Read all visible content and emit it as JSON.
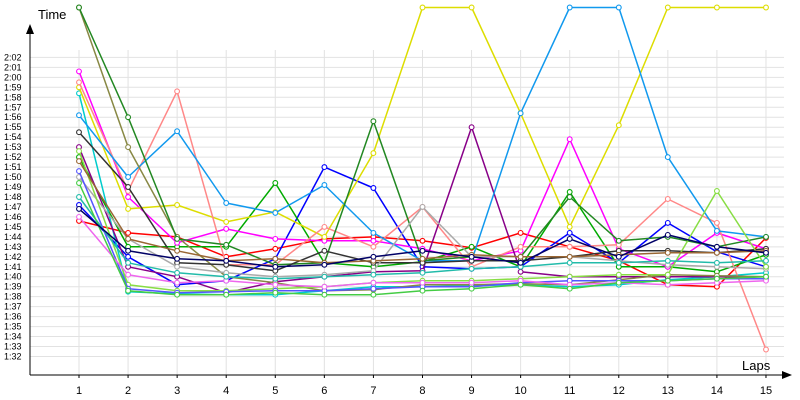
{
  "chart_data": {
    "type": "line",
    "title": "",
    "xlabel": "Laps",
    "ylabel": "Time",
    "x": [
      1,
      2,
      3,
      4,
      5,
      6,
      7,
      8,
      9,
      10,
      11,
      12,
      13,
      14,
      15
    ],
    "x_tick_labels": [
      "1",
      "2",
      "3",
      "4",
      "5",
      "6",
      "7",
      "8",
      "9",
      "10",
      "11",
      "12",
      "13",
      "14",
      "15"
    ],
    "y_tick_values": [
      92,
      93,
      94,
      95,
      96,
      97,
      98,
      99,
      100,
      101,
      102,
      103,
      104,
      105,
      106,
      107,
      108,
      109,
      110,
      111,
      112,
      113,
      114,
      115,
      116,
      117,
      118,
      119,
      120,
      121,
      122
    ],
    "y_tick_labels": [
      "1:32",
      "1:33",
      "1:34",
      "1:35",
      "1:36",
      "1:37",
      "1:38",
      "1:39",
      "1:40",
      "1:41",
      "1:42",
      "1:43",
      "1:44",
      "1:45",
      "1:46",
      "1:47",
      "1:48",
      "1:49",
      "1:50",
      "1:51",
      "1:52",
      "1:53",
      "1:54",
      "1:55",
      "1:56",
      "1:57",
      "1:58",
      "1:59",
      "2:00",
      "2:01",
      "2:02"
    ],
    "ylim": [
      88,
      126
    ],
    "grid": true,
    "legend": "none",
    "series": [
      {
        "color": "#ff0000",
        "values": [
          105.6,
          104.4,
          104.0,
          102.0,
          102.8,
          103.8,
          104.0,
          103.6,
          102.9,
          104.4,
          103.0,
          101.6,
          99.2,
          99.0,
          103.9
        ]
      },
      {
        "color": "#0000ff",
        "values": [
          107.2,
          102.0,
          99.2,
          99.6,
          101.8,
          111.0,
          108.9,
          101.0,
          100.8,
          101.0,
          104.4,
          101.4,
          105.4,
          102.5,
          101.0
        ]
      },
      {
        "color": "#00aa00",
        "values": [
          112.0,
          103.0,
          103.0,
          103.0,
          109.4,
          101.4,
          101.0,
          101.5,
          103.0,
          101.0,
          108.5,
          101.0,
          101.0,
          100.5,
          102.2
        ]
      },
      {
        "color": "#ff00ff",
        "values": [
          120.6,
          108.0,
          103.4,
          104.8,
          103.8,
          103.6,
          103.6,
          102.8,
          101.6,
          102.6,
          113.8,
          102.8,
          101.0,
          104.4,
          102.8
        ]
      },
      {
        "color": "#00cccc",
        "values": [
          118.4,
          98.5,
          98.3,
          98.2,
          98.2,
          98.6,
          99.0,
          99.0,
          99.1,
          99.2,
          99.0,
          99.2,
          99.7,
          100.0,
          100.4
        ]
      },
      {
        "color": "#dddd00",
        "values": [
          119.0,
          106.8,
          107.2,
          105.5,
          106.5,
          104.0,
          112.4,
          127.0,
          127.0,
          116.4,
          105.0,
          115.2,
          127.0,
          127.0,
          127.0
        ]
      },
      {
        "color": "#ff8888",
        "values": [
          119.5,
          108.6,
          118.6,
          101.2,
          101.2,
          105.0,
          103.0,
          107.0,
          101.0,
          103.0,
          103.0,
          103.2,
          107.8,
          105.4,
          92.7
        ]
      },
      {
        "color": "#880088",
        "values": [
          113.0,
          101.0,
          100.0,
          98.4,
          99.5,
          100.0,
          100.5,
          100.6,
          115.0,
          100.5,
          100.0,
          100.0,
          100.0,
          100.0,
          100.0
        ]
      },
      {
        "color": "#1199ee",
        "values": [
          116.2,
          110.0,
          114.6,
          107.4,
          106.4,
          109.2,
          104.4,
          101.6,
          101.6,
          116.4,
          127.0,
          127.0,
          112.0,
          104.6,
          104.0
        ]
      },
      {
        "color": "#888844",
        "values": [
          127.0,
          113.0,
          104.0,
          100.0,
          99.4,
          98.6,
          98.7,
          99.2,
          99.2,
          99.3,
          99.2,
          99.7,
          100.2,
          100.1,
          100.0
        ]
      },
      {
        "color": "#228822",
        "values": [
          127.0,
          116.0,
          103.8,
          103.2,
          101.2,
          101.4,
          115.6,
          101.6,
          102.0,
          102.0,
          108.0,
          103.6,
          104.0,
          103.0,
          104.0
        ]
      },
      {
        "color": "#333333",
        "values": [
          114.5,
          109.0,
          101.4,
          101.2,
          100.6,
          102.6,
          101.4,
          101.4,
          101.6,
          101.6,
          102.0,
          102.6,
          102.6,
          102.4,
          102.8
        ]
      },
      {
        "color": "#aaaaaa",
        "values": [
          110.0,
          103.8,
          101.0,
          100.4,
          100.0,
          100.2,
          100.6,
          107.0,
          102.0,
          102.0,
          102.0,
          101.6,
          101.2,
          101.0,
          100.8
        ]
      },
      {
        "color": "#88dd44",
        "values": [
          112.6,
          99.2,
          98.6,
          98.6,
          98.8,
          99.0,
          99.4,
          99.6,
          99.6,
          99.8,
          100.0,
          100.2,
          100.2,
          108.6,
          101.0
        ]
      },
      {
        "color": "#5555ff",
        "values": [
          110.6,
          98.8,
          98.4,
          98.5,
          98.6,
          98.6,
          98.8,
          99.0,
          99.0,
          99.4,
          99.6,
          99.6,
          99.6,
          99.8,
          99.8
        ]
      },
      {
        "color": "#ee66ee",
        "values": [
          106.0,
          100.2,
          99.4,
          99.6,
          99.2,
          99.0,
          99.4,
          99.4,
          99.4,
          99.6,
          99.2,
          99.4,
          99.2,
          99.4,
          99.6
        ]
      },
      {
        "color": "#22bbaa",
        "values": [
          108.0,
          101.4,
          100.4,
          100.0,
          99.8,
          100.0,
          100.2,
          100.4,
          100.8,
          101.0,
          101.4,
          101.4,
          101.6,
          101.4,
          101.6
        ]
      },
      {
        "color": "#996633",
        "values": [
          111.6,
          103.8,
          102.6,
          101.6,
          101.8,
          101.4,
          101.6,
          101.8,
          102.2,
          102.0,
          102.0,
          102.2,
          102.4,
          102.4,
          102.6
        ]
      },
      {
        "color": "#44cc44",
        "values": [
          109.4,
          98.6,
          98.2,
          98.2,
          98.4,
          98.2,
          98.2,
          98.6,
          98.8,
          99.2,
          98.8,
          99.4,
          99.6,
          99.8,
          100.0
        ]
      },
      {
        "color": "#000066",
        "values": [
          106.8,
          102.6,
          101.8,
          101.6,
          101.0,
          101.2,
          102.0,
          102.6,
          102.0,
          101.4,
          103.8,
          102.0,
          104.2,
          103.0,
          102.4
        ]
      }
    ]
  }
}
